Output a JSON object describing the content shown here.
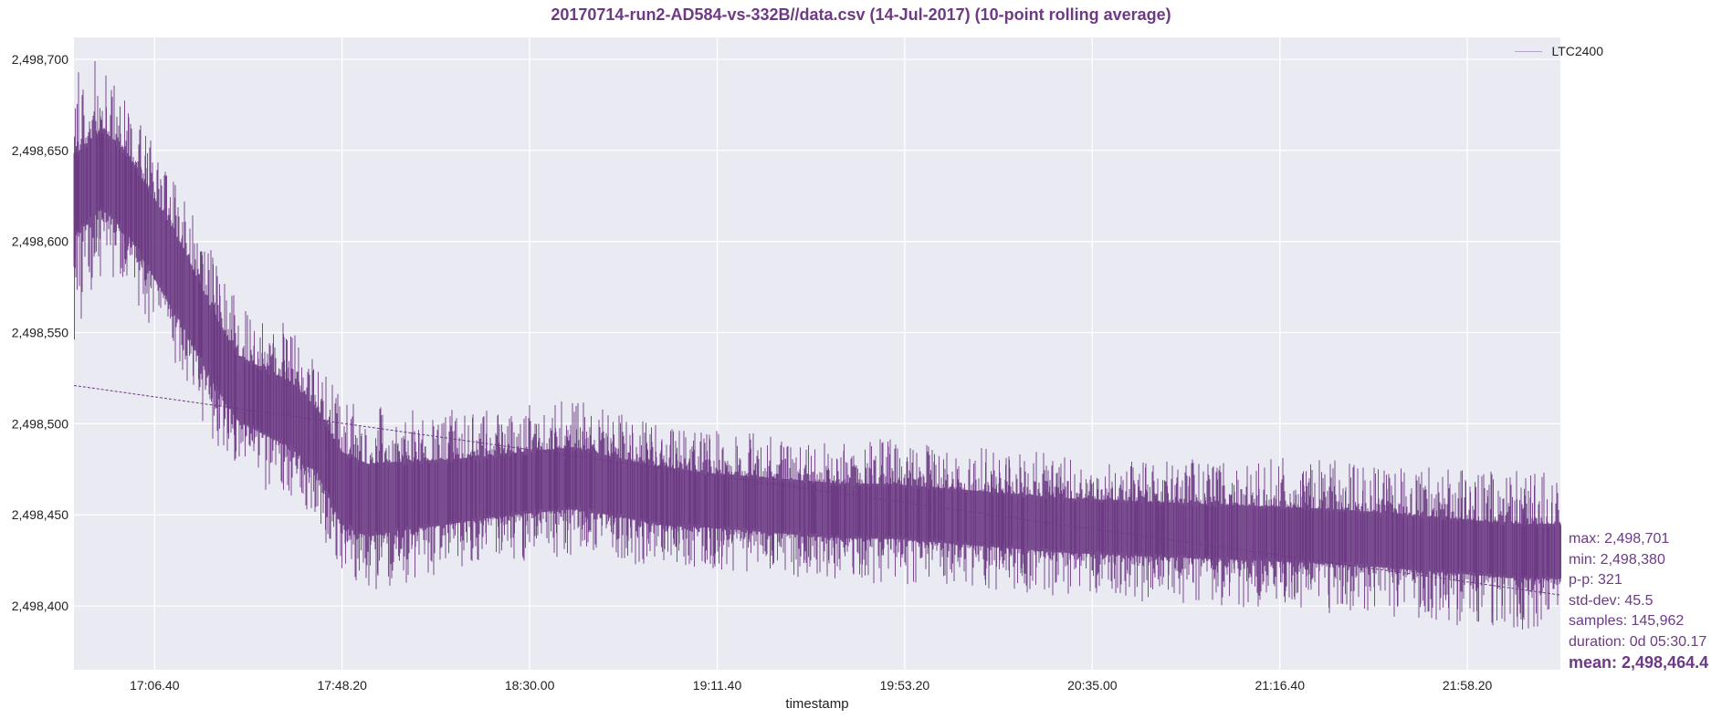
{
  "chart_data": {
    "type": "line",
    "title": "20170714-run2-AD584-vs-332B//data.csv (14-Jul-2017) (10-point rolling average)",
    "xlabel": "timestamp",
    "ylabel": "",
    "x_ticks": [
      "17:06.40",
      "17:48.20",
      "18:30.00",
      "19:11.40",
      "19:53.20",
      "20:35.00",
      "21:16.40",
      "21:58.20"
    ],
    "x_tick_minutes": [
      1026.67,
      1068.33,
      1110.0,
      1151.67,
      1193.33,
      1235.0,
      1276.67,
      1318.33
    ],
    "xlim_minutes": [
      1008.75,
      1339.0
    ],
    "y_ticks": [
      2498400,
      2498450,
      2498500,
      2498550,
      2498600,
      2498650,
      2498700
    ],
    "y_tick_labels": [
      "2,498,400",
      "2,498,450",
      "2,498,500",
      "2,498,550",
      "2,498,600",
      "2,498,650",
      "2,498,700"
    ],
    "ylim": [
      2498365,
      2498712
    ],
    "grid": true,
    "legend_position": "top-right",
    "series": [
      {
        "name": "LTC2400",
        "color": "#6d3a84",
        "envelope": {
          "minutes": [
            1008.75,
            1015,
            1021,
            1027,
            1033,
            1039,
            1045,
            1051,
            1057,
            1063,
            1068,
            1074,
            1080,
            1090,
            1100,
            1110,
            1120,
            1130,
            1140,
            1150,
            1160,
            1170,
            1180,
            1190,
            1200,
            1210,
            1220,
            1230,
            1240,
            1250,
            1260,
            1270,
            1280,
            1290,
            1300,
            1310,
            1320,
            1330,
            1339
          ],
          "center": [
            2498625,
            2498640,
            2498625,
            2498600,
            2498575,
            2498545,
            2498520,
            2498512,
            2498505,
            2498490,
            2498465,
            2498458,
            2498460,
            2498462,
            2498465,
            2498468,
            2498470,
            2498465,
            2498460,
            2498458,
            2498456,
            2498454,
            2498452,
            2498452,
            2498450,
            2498448,
            2498446,
            2498444,
            2498443,
            2498442,
            2498441,
            2498440,
            2498439,
            2498438,
            2498436,
            2498434,
            2498432,
            2498430,
            2498430
          ],
          "halfwidth": [
            22,
            22,
            22,
            22,
            22,
            20,
            18,
            18,
            18,
            18,
            20,
            20,
            19,
            18,
            17,
            17,
            17,
            16,
            16,
            15,
            15,
            15,
            15,
            15,
            15,
            15,
            15,
            15,
            15,
            15,
            15,
            15,
            15,
            15,
            15,
            15,
            15,
            15,
            15
          ],
          "spike": [
            60,
            35,
            30,
            30,
            30,
            32,
            32,
            32,
            30,
            30,
            32,
            32,
            30,
            28,
            26,
            26,
            26,
            25,
            24,
            24,
            24,
            24,
            24,
            25,
            24,
            24,
            24,
            24,
            25,
            25,
            25,
            26,
            28,
            27,
            27,
            28,
            30,
            30,
            30
          ]
        }
      },
      {
        "name": "",
        "style": "dashed",
        "color": "#6d3a84",
        "x_minutes": [
          1008.75,
          1339.0
        ],
        "y": [
          2498521,
          2498406
        ]
      }
    ],
    "stats": {
      "max": "max: 2,498,701",
      "min": "min: 2,498,380",
      "pp": "p-p: 321",
      "std": "std-dev: 45.5",
      "samples": "samples: 145,962",
      "duration": "duration: 0d 05:30.17",
      "mean": "mean: 2,498,464.4"
    },
    "colors": {
      "plot_background": "#eaeaf2",
      "grid": "#ffffff",
      "series": "#6d3a84",
      "legend_swatch": "#b3a3c8",
      "text_accent": "#6d3a84"
    }
  }
}
